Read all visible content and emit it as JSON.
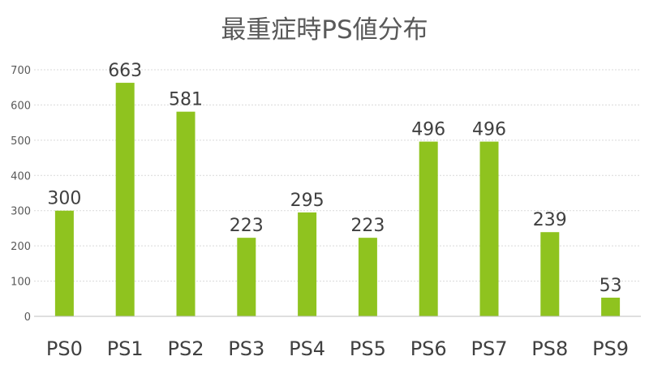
{
  "chart_data": {
    "type": "bar",
    "title": "最重症時PS値分布",
    "xlabel": "",
    "ylabel": "",
    "categories": [
      "PS0",
      "PS1",
      "PS2",
      "PS3",
      "PS4",
      "PS5",
      "PS6",
      "PS7",
      "PS8",
      "PS9"
    ],
    "values": [
      300,
      663,
      581,
      223,
      295,
      223,
      496,
      496,
      239,
      53
    ],
    "data_labels": [
      "300",
      "663",
      "581",
      "223",
      "295",
      "223",
      "496",
      "496",
      "239",
      "53"
    ],
    "ylim": [
      0,
      700
    ],
    "yticks": [
      0,
      100,
      200,
      300,
      400,
      500,
      600,
      700
    ],
    "ytick_labels": [
      "0",
      "100",
      "200",
      "300",
      "400",
      "500",
      "600",
      "700"
    ],
    "grid": true,
    "legend": "none",
    "bar_color": "#8fc31f"
  }
}
